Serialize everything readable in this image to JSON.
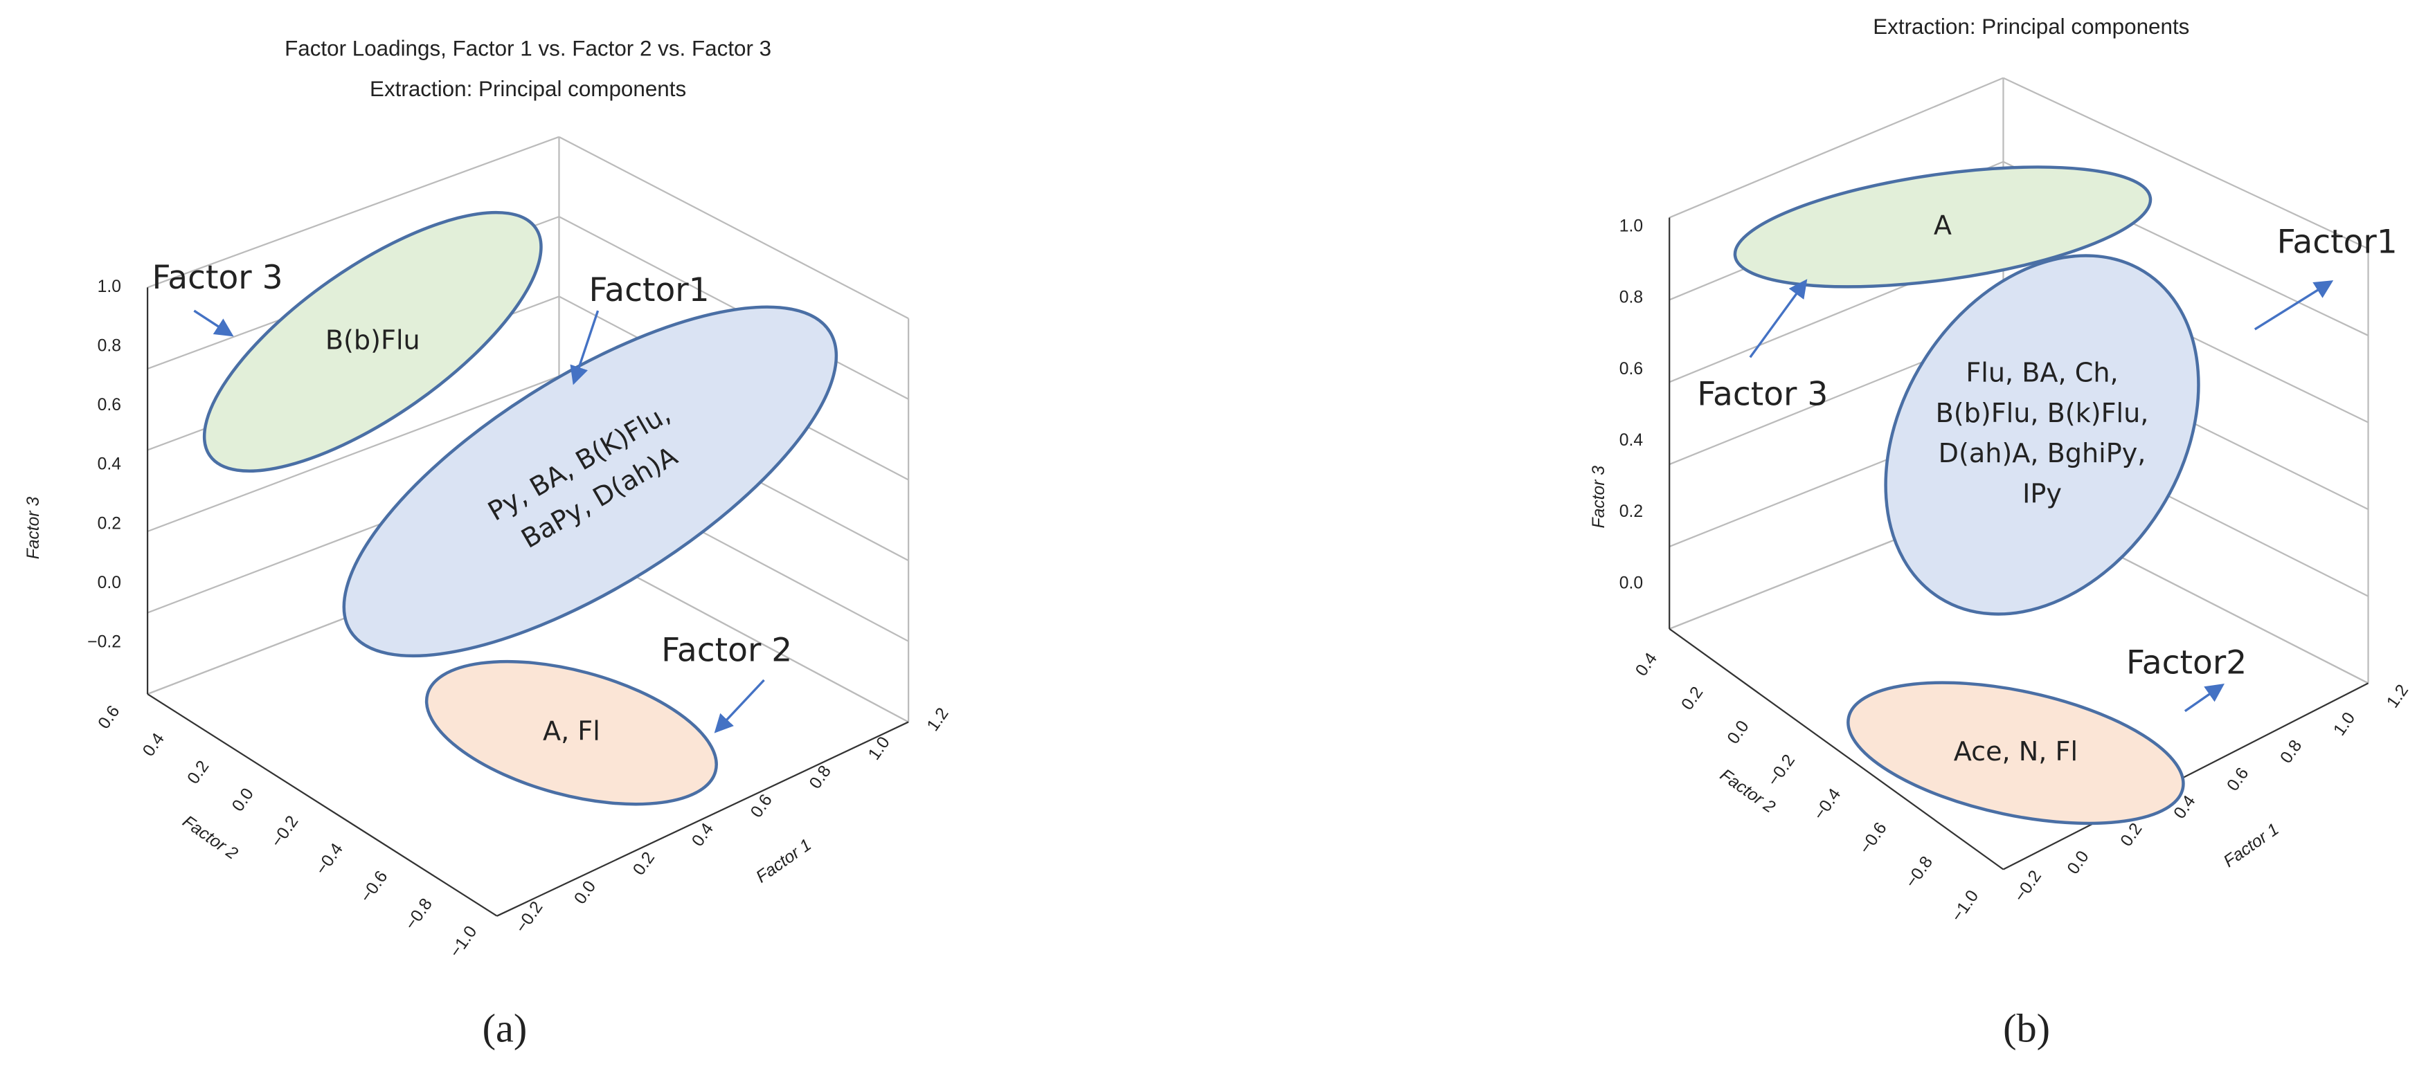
{
  "panels": [
    {
      "title_lines": [
        "Factor Loadings, Factor 1 vs. Factor 2 vs. Factor 3",
        "Extraction: Principal components"
      ],
      "factor3_ticks": [
        "1.0",
        "0.8",
        "0.6",
        "0.4",
        "0.2",
        "0.0",
        "−0.2"
      ],
      "factor2_ticks": [
        "0.6",
        "0.4",
        "0.2",
        "0.0",
        "−0.2",
        "−0.4",
        "−0.6",
        "−0.8",
        "−1.0"
      ],
      "factor1_ticks": [
        "−0.2",
        "0.0",
        "0.2",
        "0.4",
        "0.6",
        "0.8",
        "1.0",
        "1.2"
      ],
      "axis_labels": [
        "Factor 3",
        "Factor 2",
        "Factor 1"
      ],
      "groups": [
        {
          "label": "Factor 3",
          "members": [
            "B(b)Flu"
          ]
        },
        {
          "label": "Factor1",
          "members": [
            "Py, BA, B(K)Flu,",
            "BaPy, D(ah)A"
          ]
        },
        {
          "label": "Factor 2",
          "members": [
            "A, Fl"
          ]
        }
      ],
      "caption": "(a)"
    },
    {
      "title_lines": [
        "Extraction: Principal components"
      ],
      "factor3_ticks": [
        "1.0",
        "0.8",
        "0.6",
        "0.4",
        "0.2",
        "0.0"
      ],
      "factor2_ticks": [
        "0.4",
        "0.2",
        "0.0",
        "−0.2",
        "−0.4",
        "−0.6",
        "−0.8",
        "−1.0"
      ],
      "factor1_ticks": [
        "−0.2",
        "0.0",
        "0.2",
        "0.4",
        "0.6",
        "0.8",
        "1.0",
        "1.2"
      ],
      "axis_labels": [
        "Factor 3",
        "Factor 2",
        "Factor 1"
      ],
      "groups": [
        {
          "label": "Factor 3",
          "members": [
            "A"
          ]
        },
        {
          "label": "Factor1",
          "members": [
            "Flu, BA, Ch,",
            "B(b)Flu, B(k)Flu,",
            "D(ah)A, BghiPy,",
            "IPy"
          ]
        },
        {
          "label": "Factor2",
          "members": [
            "Ace, N, Fl"
          ]
        }
      ],
      "caption": "(b)"
    }
  ]
}
